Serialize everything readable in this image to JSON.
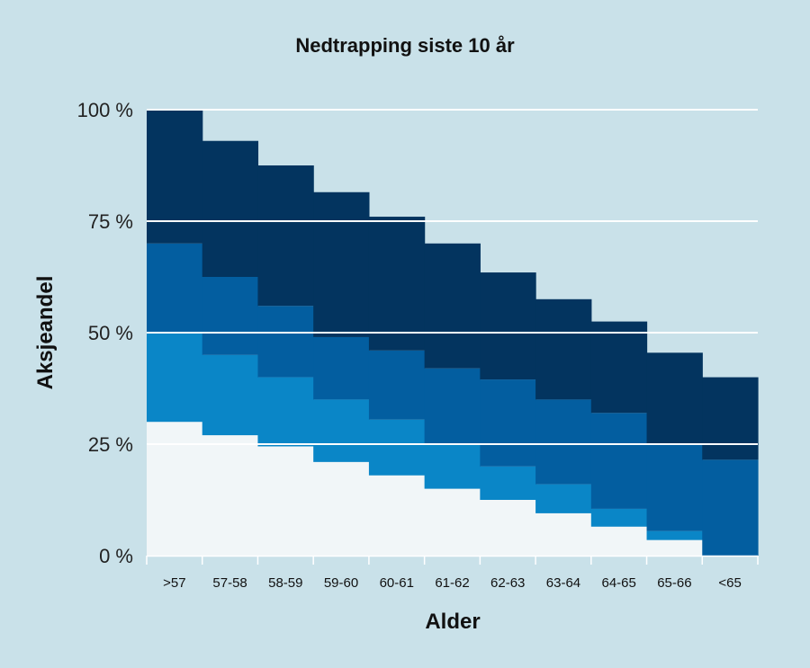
{
  "chart_data": {
    "type": "area",
    "title": "Nedtrapping siste 10 år",
    "xlabel": "Alder",
    "ylabel": "Aksjeandel",
    "categories": [
      ">57",
      "57-58",
      "58-59",
      "59-60",
      "60-61",
      "61-62",
      "62-63",
      "63-64",
      "64-65",
      "65-66",
      "<65"
    ],
    "yticks": [
      "0 %",
      "25 %",
      "50 %",
      "75 %",
      "100 %"
    ],
    "ylim": [
      0,
      100
    ],
    "stacked": true,
    "step": true,
    "grid": true,
    "series": [
      {
        "color": "#f1f6f8",
        "values": [
          30,
          27,
          24.5,
          21,
          18,
          15,
          12.5,
          9.5,
          6.5,
          3.5,
          0
        ]
      },
      {
        "color": "#0a86c7",
        "values": [
          20,
          18,
          15.5,
          14,
          12.5,
          10,
          7.5,
          6.5,
          4,
          2,
          0
        ]
      },
      {
        "color": "#035ea0",
        "values": [
          20,
          17.5,
          16,
          14,
          15.5,
          17,
          19.5,
          19,
          21.5,
          19.5,
          21.5
        ]
      },
      {
        "color": "#03345f",
        "values": [
          30,
          30.5,
          31.5,
          32.5,
          30,
          28,
          24,
          22.5,
          20.5,
          20.5,
          18.5
        ]
      }
    ],
    "gridline_color": "#ffffff"
  }
}
